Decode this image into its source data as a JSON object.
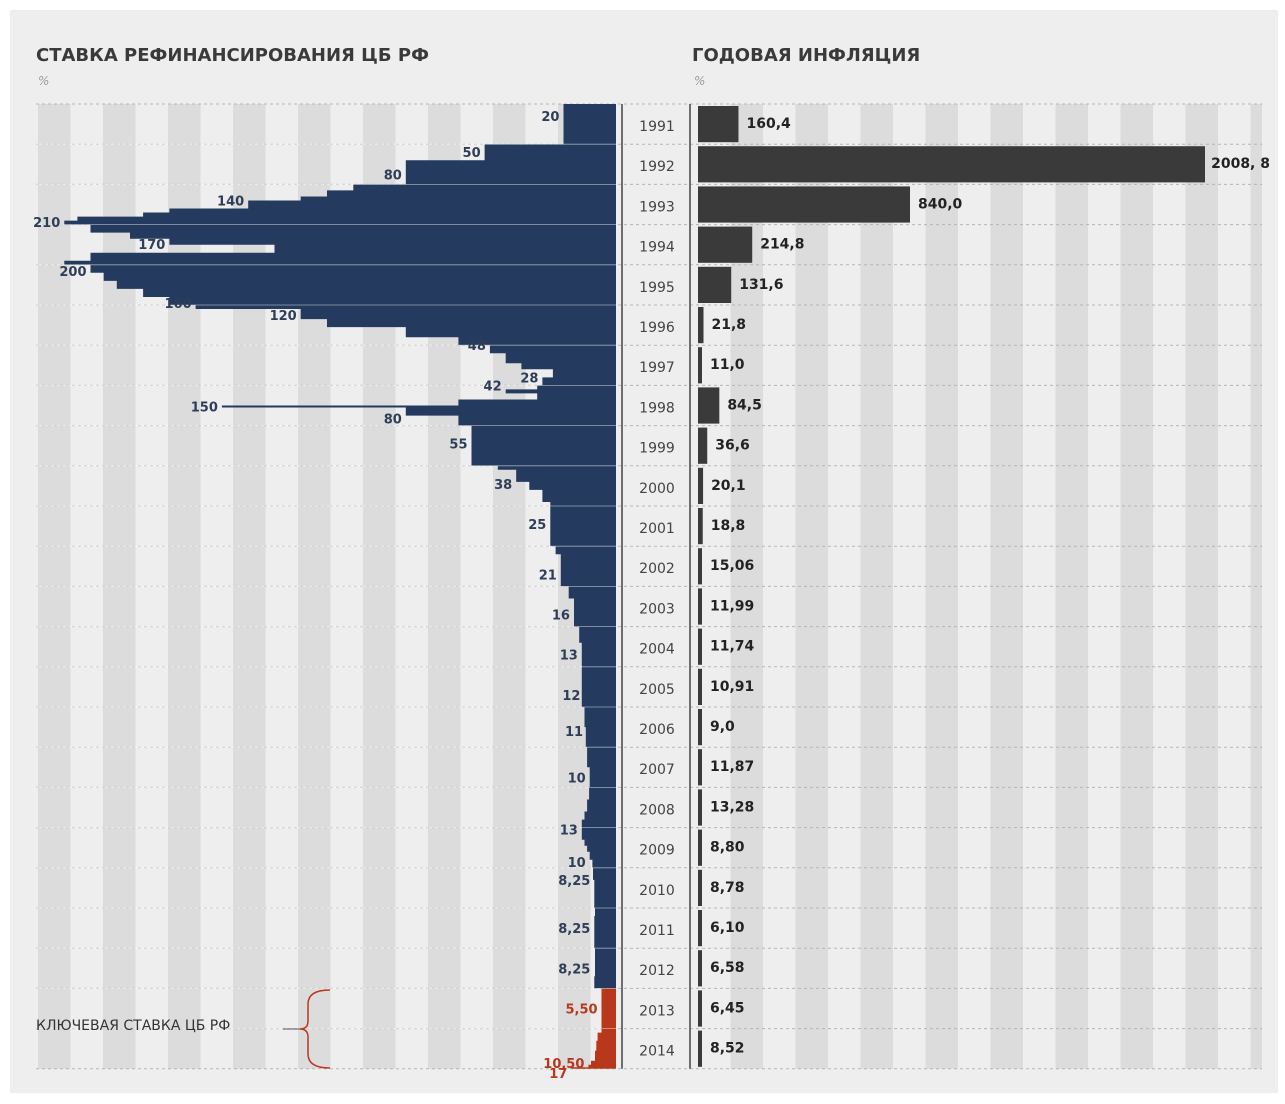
{
  "colors": {
    "background": "#eeeeee",
    "stripe": "#dcdcdc",
    "refi_bar": "#243a5e",
    "key_rate_bar": "#b8381c",
    "inflation_bar": "#3a3a3a",
    "label_dark": "#2f3e58",
    "label_red": "#b8381c"
  },
  "left_panel": {
    "title": "СТАВКА РЕФИНАНСИРОВАНИЯ ЦБ РФ",
    "unit": "%"
  },
  "right_panel": {
    "title": "ГОДОВАЯ ИНФЛЯЦИЯ",
    "unit": "%"
  },
  "annotation": {
    "key_rate_label": "КЛЮЧЕВАЯ СТАВКА ЦБ РФ"
  },
  "chart_data": [
    {
      "type": "bar",
      "orientation": "horizontal",
      "direction": "leftward",
      "title": "СТАВКА РЕФИНАНСИРОВАНИЯ ЦБ РФ",
      "unit": "%",
      "xlim": [
        0,
        220
      ],
      "categories": [
        "1991",
        "1992",
        "1993",
        "1994",
        "1995",
        "1996",
        "1997",
        "1998",
        "1999",
        "2000",
        "2001",
        "2002",
        "2003",
        "2004",
        "2005",
        "2006",
        "2007",
        "2008",
        "2009",
        "2010",
        "2011",
        "2012",
        "2013",
        "2014"
      ],
      "series": [
        {
          "name": "refinancing_rate",
          "profile": [
            [
              1991.0,
              20
            ],
            [
              1992.0,
              20
            ],
            [
              1992.0,
              50
            ],
            [
              1992.4,
              50
            ],
            [
              1992.4,
              80
            ],
            [
              1993.0,
              80
            ],
            [
              1993.0,
              100
            ],
            [
              1993.15,
              100
            ],
            [
              1993.15,
              110
            ],
            [
              1993.3,
              110
            ],
            [
              1993.3,
              120
            ],
            [
              1993.4,
              120
            ],
            [
              1993.4,
              140
            ],
            [
              1993.6,
              140
            ],
            [
              1993.6,
              170
            ],
            [
              1993.7,
              170
            ],
            [
              1993.7,
              180
            ],
            [
              1993.8,
              180
            ],
            [
              1993.8,
              205
            ],
            [
              1993.9,
              205
            ],
            [
              1993.9,
              210
            ],
            [
              1994.0,
              210
            ],
            [
              1994.0,
              200
            ],
            [
              1994.2,
              200
            ],
            [
              1994.2,
              185
            ],
            [
              1994.35,
              185
            ],
            [
              1994.35,
              170
            ],
            [
              1994.5,
              170
            ],
            [
              1994.5,
              130
            ],
            [
              1994.7,
              130
            ],
            [
              1994.7,
              200
            ],
            [
              1994.9,
              200
            ],
            [
              1994.9,
              210
            ],
            [
              1995.0,
              210
            ],
            [
              1995.0,
              200
            ],
            [
              1995.2,
              200
            ],
            [
              1995.2,
              195
            ],
            [
              1995.4,
              195
            ],
            [
              1995.4,
              190
            ],
            [
              1995.6,
              190
            ],
            [
              1995.6,
              180
            ],
            [
              1995.8,
              180
            ],
            [
              1995.8,
              170
            ],
            [
              1996.0,
              170
            ],
            [
              1996.0,
              160
            ],
            [
              1996.1,
              160
            ],
            [
              1996.1,
              120
            ],
            [
              1996.35,
              120
            ],
            [
              1996.35,
              110
            ],
            [
              1996.55,
              110
            ],
            [
              1996.55,
              80
            ],
            [
              1996.8,
              80
            ],
            [
              1996.8,
              60
            ],
            [
              1997.0,
              60
            ],
            [
              1997.0,
              48
            ],
            [
              1997.2,
              48
            ],
            [
              1997.2,
              42
            ],
            [
              1997.45,
              42
            ],
            [
              1997.45,
              36
            ],
            [
              1997.6,
              36
            ],
            [
              1997.6,
              24
            ],
            [
              1997.8,
              24
            ],
            [
              1997.8,
              28
            ],
            [
              1998.0,
              28
            ],
            [
              1998.0,
              30
            ],
            [
              1998.1,
              30
            ],
            [
              1998.1,
              42
            ],
            [
              1998.2,
              42
            ],
            [
              1998.2,
              30
            ],
            [
              1998.35,
              30
            ],
            [
              1998.35,
              60
            ],
            [
              1998.5,
              60
            ],
            [
              1998.5,
              150
            ],
            [
              1998.55,
              150
            ],
            [
              1998.55,
              80
            ],
            [
              1998.75,
              80
            ],
            [
              1998.75,
              60
            ],
            [
              1999.0,
              60
            ],
            [
              1999.0,
              55
            ],
            [
              1999.5,
              55
            ],
            [
              1999.5,
              55
            ],
            [
              2000.0,
              55
            ],
            [
              2000.0,
              45
            ],
            [
              2000.1,
              45
            ],
            [
              2000.1,
              38
            ],
            [
              2000.4,
              38
            ],
            [
              2000.4,
              33
            ],
            [
              2000.6,
              33
            ],
            [
              2000.6,
              28
            ],
            [
              2000.9,
              28
            ],
            [
              2000.9,
              25
            ],
            [
              2002.0,
              25
            ],
            [
              2002.0,
              23
            ],
            [
              2002.2,
              23
            ],
            [
              2002.2,
              21
            ],
            [
              2003.0,
              21
            ],
            [
              2003.0,
              18
            ],
            [
              2003.3,
              18
            ],
            [
              2003.3,
              16
            ],
            [
              2004.0,
              16
            ],
            [
              2004.0,
              14
            ],
            [
              2004.4,
              14
            ],
            [
              2004.4,
              13
            ],
            [
              2005.0,
              13
            ],
            [
              2005.0,
              13
            ],
            [
              2006.0,
              13
            ],
            [
              2006.0,
              12
            ],
            [
              2006.5,
              12
            ],
            [
              2006.5,
              11.5
            ],
            [
              2007.0,
              11.5
            ],
            [
              2007.0,
              11
            ],
            [
              2007.5,
              11
            ],
            [
              2007.5,
              10
            ],
            [
              2008.0,
              10
            ],
            [
              2008.0,
              10.25
            ],
            [
              2008.3,
              10.25
            ],
            [
              2008.3,
              11
            ],
            [
              2008.6,
              11
            ],
            [
              2008.6,
              12
            ],
            [
              2008.8,
              12
            ],
            [
              2008.8,
              13
            ],
            [
              2009.3,
              13
            ],
            [
              2009.3,
              12
            ],
            [
              2009.45,
              12
            ],
            [
              2009.45,
              11
            ],
            [
              2009.6,
              11
            ],
            [
              2009.6,
              10
            ],
            [
              2009.8,
              10
            ],
            [
              2009.8,
              9
            ],
            [
              2010.0,
              9
            ],
            [
              2010.0,
              8.75
            ],
            [
              2010.3,
              8.75
            ],
            [
              2010.3,
              8.25
            ],
            [
              2011.0,
              8.25
            ],
            [
              2011.0,
              8.0
            ],
            [
              2011.2,
              8.0
            ],
            [
              2011.2,
              8.25
            ],
            [
              2012.0,
              8.25
            ],
            [
              2012.0,
              8.0
            ],
            [
              2012.7,
              8.0
            ],
            [
              2012.7,
              8.25
            ],
            [
              2013.0,
              8.25
            ]
          ]
        },
        {
          "name": "key_rate",
          "profile": [
            [
              2013.0,
              5.5
            ],
            [
              2014.1,
              5.5
            ],
            [
              2014.1,
              7.0
            ],
            [
              2014.3,
              7.0
            ],
            [
              2014.3,
              7.5
            ],
            [
              2014.55,
              7.5
            ],
            [
              2014.55,
              8.0
            ],
            [
              2014.8,
              8.0
            ],
            [
              2014.8,
              9.5
            ],
            [
              2014.9,
              9.5
            ],
            [
              2014.9,
              10.5
            ],
            [
              2014.96,
              10.5
            ],
            [
              2014.96,
              17.0
            ],
            [
              2015.0,
              17.0
            ]
          ]
        }
      ],
      "labels": [
        {
          "text": "20",
          "x": 20,
          "year": 1991.3
        },
        {
          "text": "50",
          "x": 50,
          "year": 1992.2
        },
        {
          "text": "80",
          "x": 80,
          "year": 1992.75
        },
        {
          "text": "140",
          "x": 140,
          "year": 1993.4
        },
        {
          "text": "210",
          "x": 210,
          "year": 1993.93
        },
        {
          "text": "170",
          "x": 170,
          "year": 1994.48
        },
        {
          "text": "200",
          "x": 200,
          "year": 1995.15
        },
        {
          "text": "160",
          "x": 160,
          "year": 1995.95
        },
        {
          "text": "120",
          "x": 120,
          "year": 1996.25
        },
        {
          "text": "48",
          "x": 48,
          "year": 1997.0
        },
        {
          "text": "28",
          "x": 28,
          "year": 1997.8
        },
        {
          "text": "42",
          "x": 42,
          "year": 1998.0
        },
        {
          "text": "150",
          "x": 150,
          "year": 1998.52
        },
        {
          "text": "80",
          "x": 80,
          "year": 1998.82
        },
        {
          "text": "55",
          "x": 55,
          "year": 1999.45
        },
        {
          "text": "38",
          "x": 38,
          "year": 2000.45
        },
        {
          "text": "25",
          "x": 25,
          "year": 2001.45
        },
        {
          "text": "21",
          "x": 21,
          "year": 2002.7
        },
        {
          "text": "16",
          "x": 16,
          "year": 2003.7
        },
        {
          "text": "13",
          "x": 13,
          "year": 2004.7
        },
        {
          "text": "12",
          "x": 12,
          "year": 2005.7
        },
        {
          "text": "11",
          "x": 11,
          "year": 2006.6
        },
        {
          "text": "10",
          "x": 10,
          "year": 2007.75
        },
        {
          "text": "13",
          "x": 13,
          "year": 2009.05
        },
        {
          "text": "10",
          "x": 10,
          "year": 2009.85
        },
        {
          "text": "8,25",
          "x": 8.25,
          "year": 2010.3
        },
        {
          "text": "8,25",
          "x": 8.25,
          "year": 2011.5
        },
        {
          "text": "8,25",
          "x": 8.25,
          "year": 2012.5
        },
        {
          "text": "5,50",
          "x": 5.5,
          "year": 2013.5,
          "color": "red"
        },
        {
          "text": "10,50",
          "x": 10.5,
          "year": 2014.85,
          "color": "red"
        },
        {
          "text": "17",
          "x": 17,
          "year": 2015.1,
          "color": "red"
        }
      ]
    },
    {
      "type": "bar",
      "orientation": "horizontal",
      "title": "ГОДОВАЯ ИНФЛЯЦИЯ",
      "unit": "%",
      "categories": [
        "1991",
        "1992",
        "1993",
        "1994",
        "1995",
        "1996",
        "1997",
        "1998",
        "1999",
        "2000",
        "2001",
        "2002",
        "2003",
        "2004",
        "2005",
        "2006",
        "2007",
        "2008",
        "2009",
        "2010",
        "2011",
        "2012",
        "2013",
        "2014"
      ],
      "values": [
        160.4,
        2008.8,
        840.0,
        214.8,
        131.6,
        21.8,
        11.0,
        84.5,
        36.6,
        20.1,
        18.8,
        15.06,
        11.99,
        11.74,
        10.91,
        9.0,
        11.87,
        13.28,
        8.8,
        8.78,
        6.1,
        6.58,
        6.45,
        8.52
      ],
      "value_labels": [
        "160,4",
        "2008, 8",
        "840,0",
        "214,8",
        "131,6",
        "21,8",
        "11,0",
        "84,5",
        "36,6",
        "20,1",
        "18,8",
        "15,06",
        "11,99",
        "11,74",
        "10,91",
        "9,0",
        "11,87",
        "13,28",
        "8,80",
        "8,78",
        "6,10",
        "6,58",
        "6,45",
        "8,52"
      ]
    }
  ]
}
